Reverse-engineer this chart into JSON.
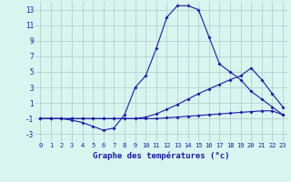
{
  "title": "Graphe des températures (°c)",
  "bg_color": "#d8f5f0",
  "grid_color": "#b0c8c8",
  "line_color": "#1a1aaa",
  "marker": "D",
  "marker_size": 2.0,
  "hours": [
    0,
    1,
    2,
    3,
    4,
    5,
    6,
    7,
    8,
    9,
    10,
    11,
    12,
    13,
    14,
    15,
    16,
    17,
    18,
    19,
    20,
    21,
    22,
    23
  ],
  "temp_actual": [
    -1,
    -1,
    -1,
    -1.2,
    -1.5,
    -2,
    -2.5,
    -2.2,
    -0.5,
    3,
    4.5,
    8,
    12,
    13.5,
    13.5,
    13,
    9.5,
    6,
    5,
    4,
    2.5,
    1.5,
    0.5,
    -0.5
  ],
  "temp_max": [
    -1,
    -1,
    -1,
    -1,
    -1,
    -1,
    -1,
    -1,
    -1,
    -1,
    -0.8,
    -0.4,
    0.2,
    0.8,
    1.5,
    2.2,
    2.8,
    3.4,
    4.0,
    4.5,
    5.5,
    4.0,
    2.2,
    0.5
  ],
  "temp_min": [
    -1,
    -1,
    -1,
    -1,
    -1,
    -1,
    -1,
    -1,
    -1,
    -1,
    -1,
    -1,
    -0.9,
    -0.8,
    -0.7,
    -0.6,
    -0.5,
    -0.4,
    -0.3,
    -0.2,
    -0.1,
    0.0,
    0.0,
    -0.5
  ],
  "xlim": [
    -0.5,
    23.5
  ],
  "ylim": [
    -4,
    14
  ],
  "yticks": [
    -3,
    -1,
    1,
    3,
    5,
    7,
    9,
    11,
    13
  ],
  "xticks": [
    0,
    1,
    2,
    3,
    4,
    5,
    6,
    7,
    8,
    9,
    10,
    11,
    12,
    13,
    14,
    15,
    16,
    17,
    18,
    19,
    20,
    21,
    22,
    23
  ]
}
